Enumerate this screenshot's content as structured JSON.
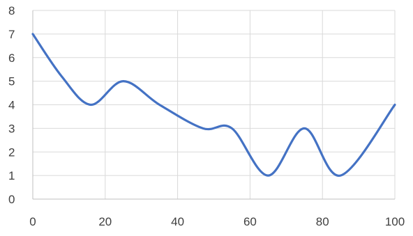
{
  "chart_data": {
    "type": "line",
    "title": "",
    "xlabel": "",
    "ylabel": "",
    "xlim": [
      0,
      100
    ],
    "ylim": [
      0,
      8
    ],
    "x_ticks": [
      0,
      20,
      40,
      60,
      80,
      100
    ],
    "y_ticks": [
      0,
      1,
      2,
      3,
      4,
      5,
      6,
      7,
      8
    ],
    "grid": true,
    "legend": "none",
    "series": [
      {
        "x": [
          0,
          8,
          16,
          25,
          35,
          47,
          55,
          65,
          75,
          85,
          100
        ],
        "y": [
          7,
          5.2,
          4,
          5,
          4,
          3,
          3,
          1,
          3,
          1,
          4
        ],
        "color": "#4472C4"
      }
    ]
  }
}
